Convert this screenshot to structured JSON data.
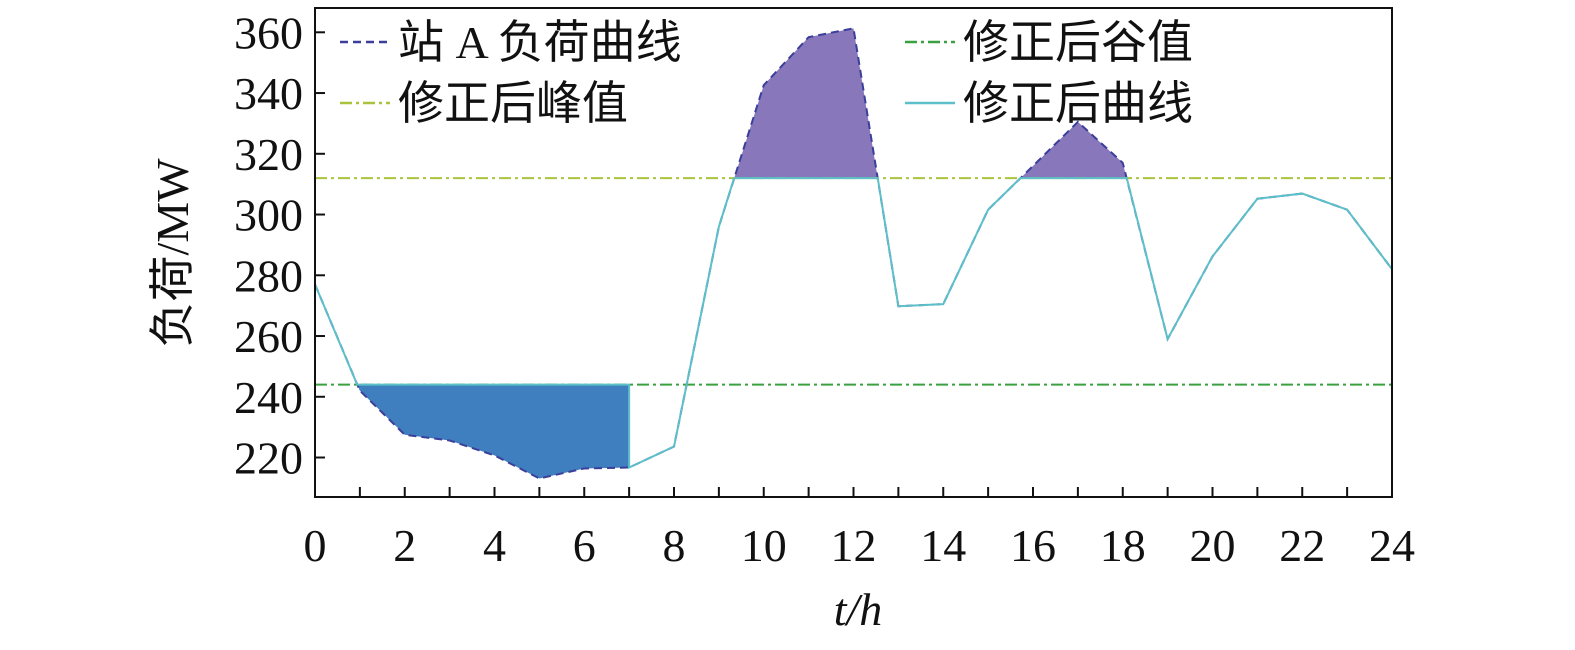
{
  "chart_data": {
    "type": "line",
    "xlabel": "t/h",
    "ylabel": "负荷/MW",
    "xlim": [
      0,
      24
    ],
    "ylim": [
      207,
      368
    ],
    "xticks": [
      0,
      2,
      4,
      6,
      8,
      10,
      12,
      14,
      16,
      18,
      20,
      22,
      24
    ],
    "yticks": [
      220,
      240,
      260,
      280,
      300,
      320,
      340,
      360
    ],
    "peak_fill_color": "#8877bb",
    "valley_fill_color": "#3f7ebf",
    "series": [
      {
        "name": "站 A 负荷曲线",
        "color": "#3b3f9a",
        "style": "dashed",
        "x": [
          0,
          1,
          2,
          3,
          4,
          5,
          6,
          7,
          8,
          9,
          10,
          11,
          12,
          13,
          14,
          15,
          16,
          17,
          18,
          19,
          20,
          21,
          22,
          23,
          24
        ],
        "values": [
          277,
          242,
          227.5,
          225.6,
          220.7,
          213.1,
          216.4,
          216.7,
          223.6,
          296,
          342.6,
          358.4,
          361.3,
          269.8,
          270.5,
          301.6,
          316,
          330.5,
          317,
          259,
          286.2,
          305.2,
          306.9,
          301.6,
          282
        ]
      },
      {
        "name": "修正后谷值",
        "color": "#3aa040",
        "style": "dashdot",
        "role": "valley",
        "x": [
          0,
          24
        ],
        "values": [
          244,
          244
        ]
      },
      {
        "name": "修正后峰值",
        "color": "#a9c43c",
        "style": "dashdot",
        "role": "peak",
        "x": [
          0,
          24
        ],
        "values": [
          312,
          312
        ]
      },
      {
        "name": "修正后曲线",
        "color": "#5cbfc9",
        "style": "solid",
        "x": [
          0,
          0.94,
          7,
          7,
          8,
          9,
          9.34,
          12.54,
          13,
          14,
          15,
          15.72,
          18.09,
          19,
          20,
          21,
          22,
          23,
          24
        ],
        "values": [
          277,
          244,
          244,
          216.7,
          223.6,
          296,
          312,
          312,
          269.8,
          270.5,
          301.6,
          312,
          312,
          259,
          286.2,
          305.2,
          306.9,
          301.6,
          282
        ]
      }
    ]
  }
}
